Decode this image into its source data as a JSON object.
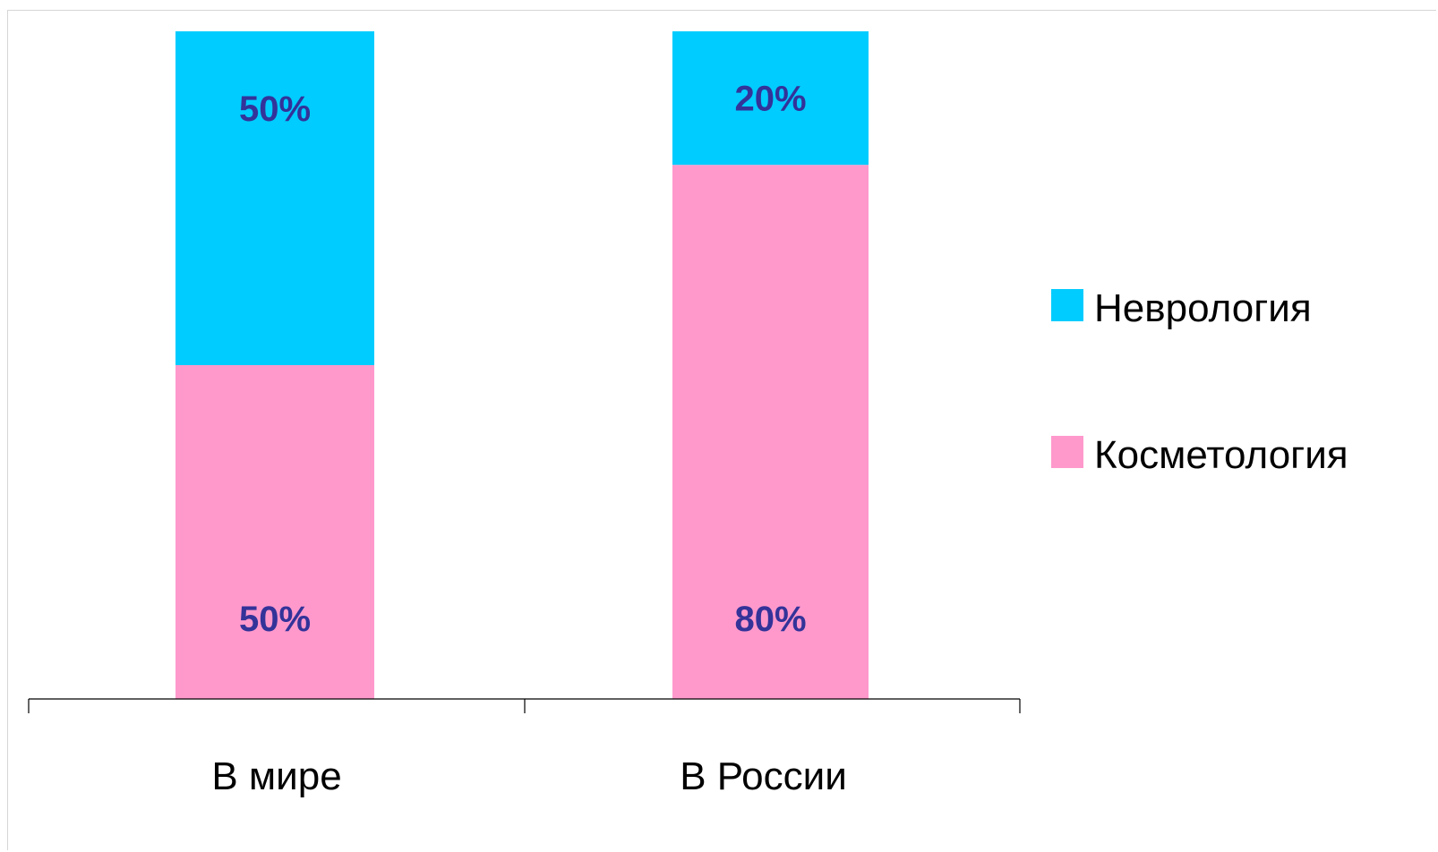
{
  "chart_data": {
    "type": "bar",
    "stacked": true,
    "normalized_percent": true,
    "categories": [
      "В мире",
      "В России"
    ],
    "series": [
      {
        "name": "Косметология",
        "values": [
          50,
          80
        ],
        "labels": [
          "50%",
          "80%"
        ],
        "color": "#ff99cc"
      },
      {
        "name": "Неврология",
        "values": [
          50,
          20
        ],
        "labels": [
          "50%",
          "20%"
        ],
        "color": "#00ccff"
      }
    ],
    "legend_order": [
      "Неврология",
      "Косметология"
    ],
    "title": "",
    "xlabel": "",
    "ylabel": "",
    "ylim": [
      0,
      100
    ],
    "grid": false,
    "legend_position": "right",
    "label_color": "#333399"
  }
}
